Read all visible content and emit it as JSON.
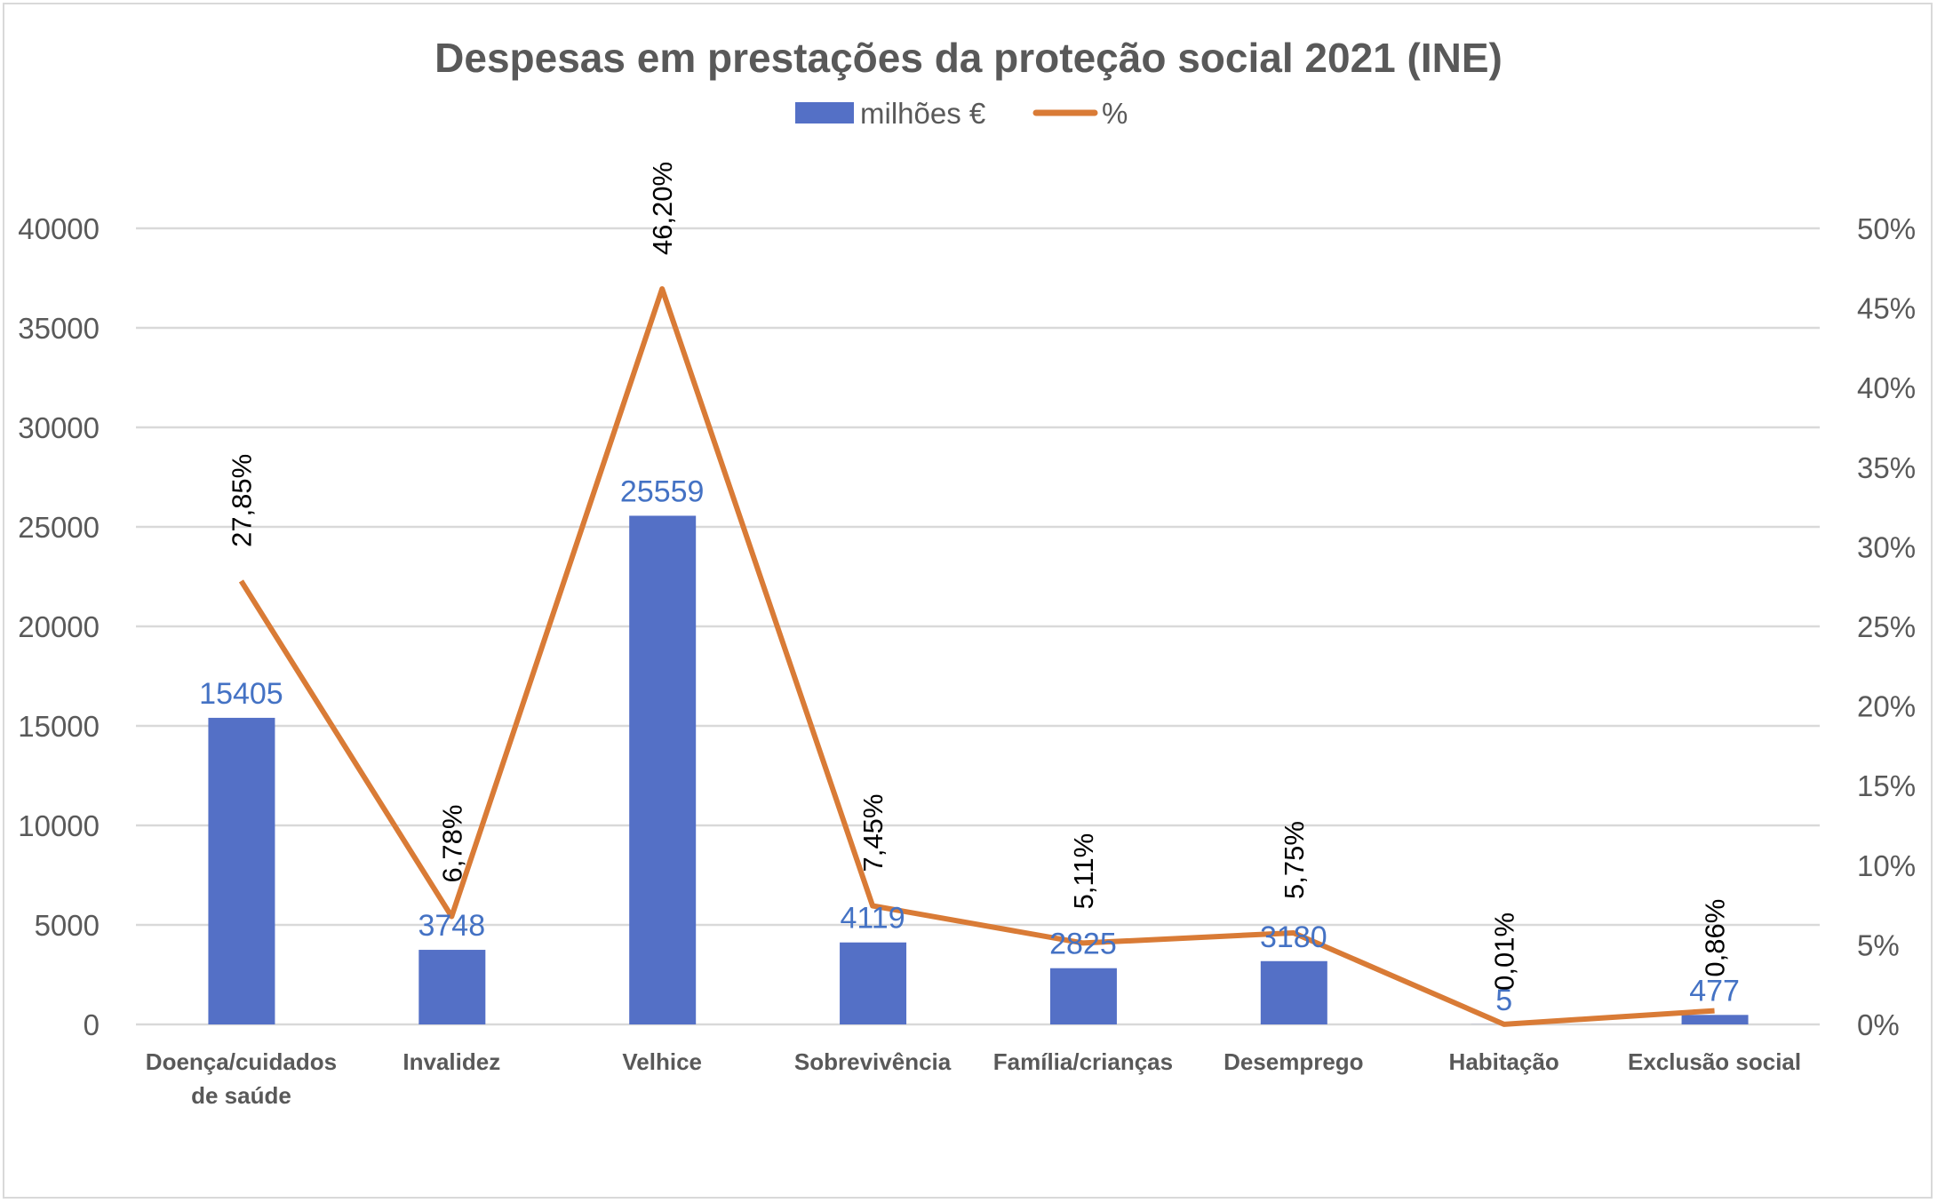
{
  "chart_data": {
    "type": "bar+line",
    "title": "Despesas em prestações da proteção social 2021 (INE)",
    "categories": [
      [
        "Doença/cuidados",
        "de saúde"
      ],
      [
        "Invalidez"
      ],
      [
        "Velhice"
      ],
      [
        "Sobrevivência"
      ],
      [
        "Família/crianças"
      ],
      [
        "Desemprego"
      ],
      [
        "Habitação"
      ],
      [
        "Exclusão social"
      ]
    ],
    "series": [
      {
        "name": "milhões €",
        "type": "bar",
        "axis": "left",
        "color": "#5470c6",
        "values": [
          15405,
          3748,
          25559,
          4119,
          2825,
          3180,
          5,
          477
        ],
        "labels": [
          "15405",
          "3748",
          "25559",
          "4119",
          "2825",
          "3180",
          "5",
          "477"
        ]
      },
      {
        "name": "%",
        "type": "line",
        "axis": "right",
        "color": "#d97b36",
        "values": [
          27.85,
          6.78,
          46.2,
          7.45,
          5.11,
          5.75,
          0.01,
          0.86
        ],
        "labels": [
          "27,85%",
          "6,78%",
          "46,20%",
          "7,45%",
          "5,11%",
          "5,75%",
          "0,01%",
          "0,86%"
        ]
      }
    ],
    "yleft": {
      "lim": [
        0,
        40000
      ],
      "ticks": [
        "0",
        "5000",
        "10000",
        "15000",
        "20000",
        "25000",
        "30000",
        "35000",
        "40000"
      ]
    },
    "yright": {
      "lim": [
        0,
        50
      ],
      "ticks": [
        "0%",
        "5%",
        "10%",
        "15%",
        "20%",
        "25%",
        "30%",
        "35%",
        "40%",
        "45%",
        "50%"
      ]
    },
    "grid": true,
    "legend": "top"
  }
}
